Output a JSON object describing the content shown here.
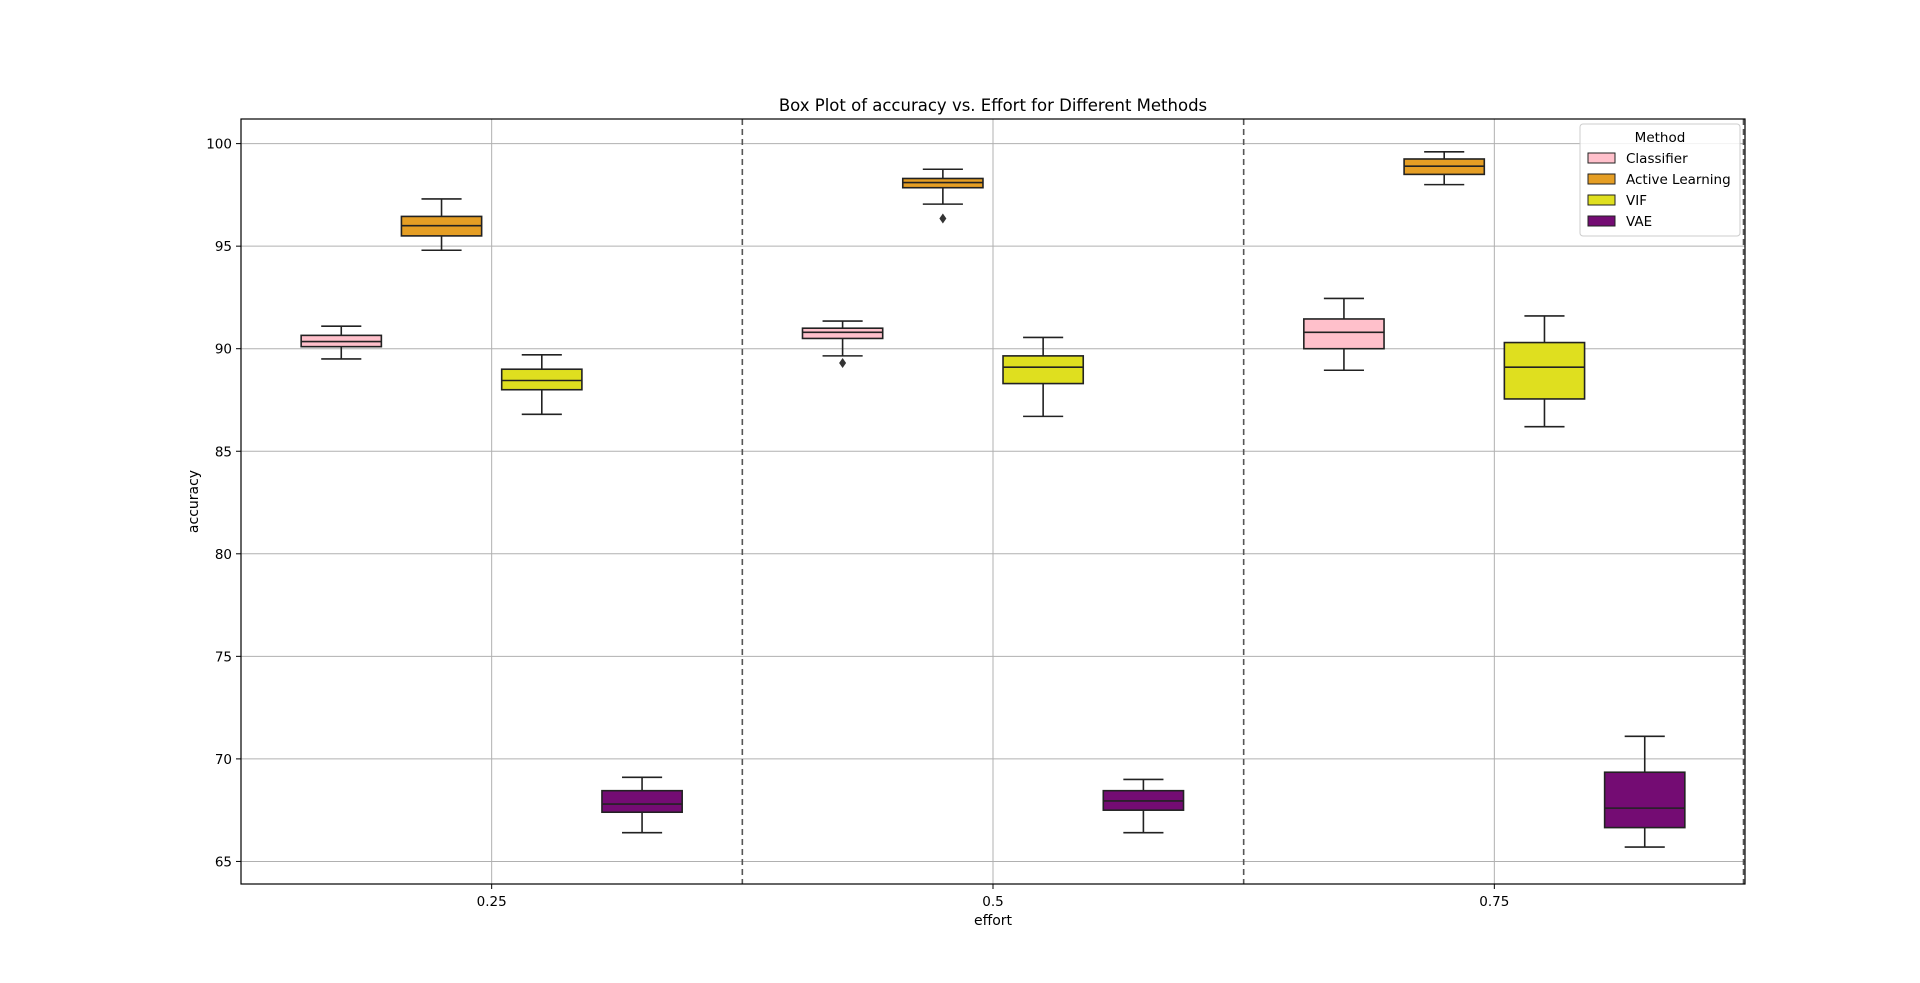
{
  "chart_data": {
    "type": "box",
    "title": "Box Plot of accuracy vs. Effort for Different Methods",
    "xlabel": "effort",
    "ylabel": "accuracy",
    "ylim": [
      63.9,
      101.2
    ],
    "yticks": [
      65,
      70,
      75,
      80,
      85,
      90,
      95,
      100
    ],
    "grid": true,
    "categories": [
      "0.25",
      "0.5",
      "0.75"
    ],
    "legend": {
      "title": "Method",
      "position": "top-right"
    },
    "series": [
      {
        "name": "Classifier",
        "color": "#ffc0cb",
        "boxes": [
          {
            "whisker_low": 89.5,
            "q1": 90.1,
            "median": 90.35,
            "q3": 90.65,
            "whisker_high": 91.1,
            "outliers": []
          },
          {
            "whisker_low": 89.65,
            "q1": 90.5,
            "median": 90.8,
            "q3": 91.0,
            "whisker_high": 91.35,
            "outliers": [
              89.3
            ]
          },
          {
            "whisker_low": 88.95,
            "q1": 90.0,
            "median": 90.8,
            "q3": 91.45,
            "whisker_high": 92.45,
            "outliers": []
          }
        ]
      },
      {
        "name": "Active Learning",
        "color": "#e59e24",
        "boxes": [
          {
            "whisker_low": 94.8,
            "q1": 95.5,
            "median": 96.0,
            "q3": 96.45,
            "whisker_high": 97.3,
            "outliers": []
          },
          {
            "whisker_low": 97.05,
            "q1": 97.85,
            "median": 98.1,
            "q3": 98.3,
            "whisker_high": 98.75,
            "outliers": [
              96.35
            ]
          },
          {
            "whisker_low": 98.0,
            "q1": 98.5,
            "median": 98.9,
            "q3": 99.25,
            "whisker_high": 99.6,
            "outliers": []
          }
        ]
      },
      {
        "name": "VIF",
        "color": "#dfdf1f",
        "boxes": [
          {
            "whisker_low": 86.8,
            "q1": 88.0,
            "median": 88.45,
            "q3": 89.0,
            "whisker_high": 89.7,
            "outliers": []
          },
          {
            "whisker_low": 86.7,
            "q1": 88.3,
            "median": 89.1,
            "q3": 89.65,
            "whisker_high": 90.55,
            "outliers": []
          },
          {
            "whisker_low": 86.2,
            "q1": 87.55,
            "median": 89.1,
            "q3": 90.3,
            "whisker_high": 91.6,
            "outliers": []
          }
        ]
      },
      {
        "name": "VAE",
        "color": "#740c73",
        "boxes": [
          {
            "whisker_low": 66.4,
            "q1": 67.4,
            "median": 67.8,
            "q3": 68.45,
            "whisker_high": 69.1,
            "outliers": []
          },
          {
            "whisker_low": 66.4,
            "q1": 67.5,
            "median": 67.95,
            "q3": 68.45,
            "whisker_high": 69.0,
            "outliers": []
          },
          {
            "whisker_low": 65.7,
            "q1": 66.65,
            "median": 67.6,
            "q3": 69.35,
            "whisker_high": 71.1,
            "outliers": []
          }
        ]
      }
    ]
  }
}
